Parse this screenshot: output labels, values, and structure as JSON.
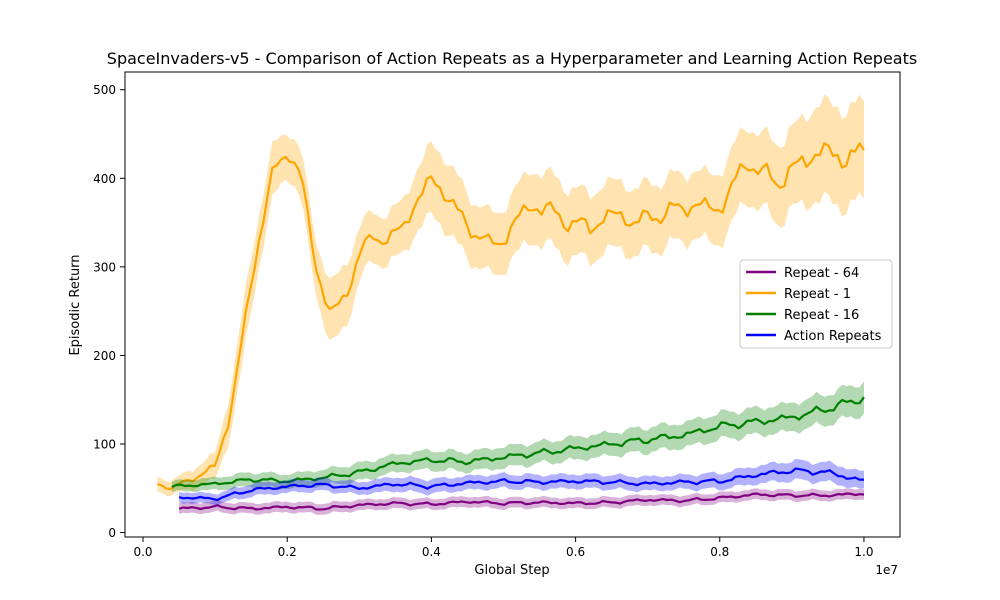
{
  "chart_data": {
    "type": "line",
    "title": "SpaceInvaders-v5 - Comparison of Action Repeats as a Hyperparameter and Learning Action Repeats",
    "xlabel": "Global Step",
    "ylabel": "Episodic Return",
    "x_offset_label": "1e7",
    "xlim": [
      -0.025,
      1.05
    ],
    "ylim": [
      -5,
      520
    ],
    "xticks": [
      0.0,
      0.2,
      0.4,
      0.6,
      0.8,
      1.0
    ],
    "xtick_labels": [
      "0.0",
      "0.2",
      "0.4",
      "0.6",
      "0.8",
      "1.0"
    ],
    "yticks": [
      0,
      100,
      200,
      300,
      400,
      500
    ],
    "ytick_labels": [
      "0",
      "100",
      "200",
      "300",
      "400",
      "500"
    ],
    "grid": false,
    "legend_position": "center-right",
    "series": [
      {
        "name": "Repeat - 64",
        "color": "#800080",
        "x": [
          0.05,
          0.1,
          0.15,
          0.2,
          0.25,
          0.3,
          0.35,
          0.4,
          0.45,
          0.5,
          0.55,
          0.6,
          0.65,
          0.7,
          0.75,
          0.8,
          0.85,
          0.9,
          0.95,
          1.0
        ],
        "y": [
          27,
          29,
          27,
          29,
          27,
          31,
          33,
          32,
          35,
          33,
          34,
          33,
          34,
          37,
          36,
          39,
          43,
          42,
          42,
          44
        ],
        "band": [
          6,
          6,
          6,
          6,
          6,
          6,
          6,
          6,
          6,
          6,
          6,
          6,
          6,
          6,
          6,
          6,
          6,
          6,
          6,
          6
        ]
      },
      {
        "name": "Repeat - 1",
        "color": "#ffa500",
        "x": [
          0.02,
          0.04,
          0.06,
          0.08,
          0.1,
          0.12,
          0.14,
          0.16,
          0.18,
          0.2,
          0.22,
          0.24,
          0.26,
          0.28,
          0.3,
          0.32,
          0.34,
          0.36,
          0.38,
          0.4,
          0.42,
          0.44,
          0.46,
          0.48,
          0.5,
          0.52,
          0.54,
          0.56,
          0.58,
          0.6,
          0.62,
          0.64,
          0.66,
          0.68,
          0.7,
          0.72,
          0.74,
          0.76,
          0.78,
          0.8,
          0.82,
          0.84,
          0.86,
          0.88,
          0.9,
          0.92,
          0.94,
          0.96,
          0.98,
          1.0
        ],
        "y": [
          55,
          50,
          58,
          65,
          75,
          130,
          230,
          330,
          405,
          432,
          400,
          300,
          245,
          265,
          315,
          335,
          330,
          345,
          375,
          398,
          385,
          355,
          340,
          325,
          330,
          355,
          370,
          365,
          355,
          348,
          345,
          355,
          360,
          350,
          355,
          360,
          365,
          370,
          368,
          365,
          395,
          420,
          405,
          395,
          410,
          420,
          435,
          420,
          430,
          422
        ],
        "band": [
          8,
          8,
          10,
          12,
          15,
          25,
          30,
          30,
          30,
          25,
          28,
          30,
          35,
          35,
          30,
          28,
          28,
          30,
          35,
          40,
          40,
          38,
          35,
          35,
          35,
          38,
          40,
          40,
          40,
          38,
          38,
          38,
          38,
          38,
          38,
          38,
          38,
          38,
          38,
          40,
          42,
          42,
          42,
          45,
          45,
          50,
          55,
          55,
          55,
          55
        ]
      },
      {
        "name": "Repeat - 16",
        "color": "#008000",
        "x": [
          0.04,
          0.1,
          0.15,
          0.2,
          0.25,
          0.3,
          0.35,
          0.4,
          0.45,
          0.5,
          0.55,
          0.6,
          0.65,
          0.7,
          0.75,
          0.8,
          0.85,
          0.9,
          0.95,
          1.0
        ],
        "y": [
          52,
          55,
          60,
          58,
          62,
          68,
          78,
          82,
          80,
          85,
          90,
          95,
          100,
          105,
          110,
          120,
          125,
          130,
          140,
          152
        ],
        "band": [
          6,
          7,
          8,
          8,
          9,
          10,
          10,
          11,
          11,
          12,
          12,
          13,
          13,
          14,
          14,
          15,
          15,
          16,
          17,
          18
        ]
      },
      {
        "name": "Action Repeats",
        "color": "#0000ff",
        "x": [
          0.05,
          0.1,
          0.15,
          0.2,
          0.25,
          0.3,
          0.35,
          0.4,
          0.45,
          0.5,
          0.55,
          0.6,
          0.65,
          0.7,
          0.75,
          0.8,
          0.85,
          0.9,
          0.95,
          1.0
        ],
        "y": [
          40,
          38,
          48,
          52,
          54,
          50,
          55,
          52,
          56,
          58,
          57,
          58,
          57,
          55,
          57,
          58,
          65,
          70,
          68,
          58
        ],
        "band": [
          6,
          6,
          7,
          7,
          7,
          7,
          8,
          8,
          8,
          8,
          8,
          8,
          8,
          8,
          8,
          9,
          10,
          11,
          11,
          10
        ]
      }
    ]
  }
}
